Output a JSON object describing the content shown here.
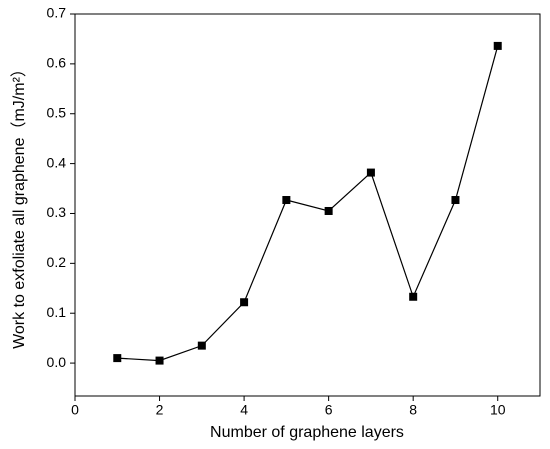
{
  "chart_data": {
    "type": "line",
    "xlabel": "Number of graphene layers",
    "ylabel": "Work to exfoliate all graphene（mJ/m²）",
    "x": [
      1,
      2,
      3,
      4,
      5,
      6,
      7,
      8,
      9,
      10
    ],
    "series": [
      {
        "color": "#000000",
        "values": [
          0.01,
          0.005,
          0.035,
          0.122,
          0.327,
          0.305,
          0.382,
          0.133,
          0.327,
          0.636
        ]
      }
    ],
    "xlim": [
      0,
      11
    ],
    "xticks": [
      0,
      2,
      4,
      6,
      8,
      10
    ],
    "ylim": [
      -0.066,
      0.7
    ],
    "yticks": [
      {
        "value": 0,
        "label": "0.0"
      },
      0.1,
      0.2,
      0.3,
      0.4,
      0.5,
      0.6,
      0.7
    ],
    "grid": false
  }
}
